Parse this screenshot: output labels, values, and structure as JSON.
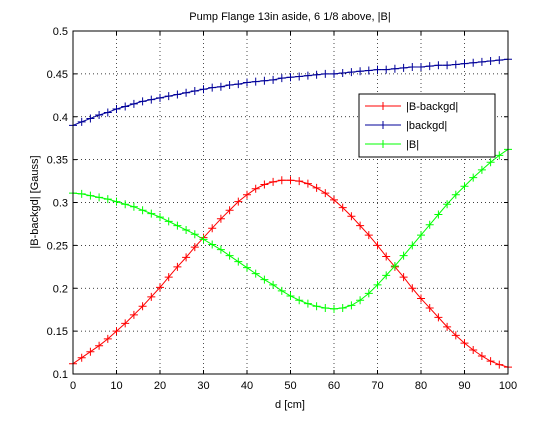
{
  "chart_data": {
    "type": "line",
    "title": "Pump Flange 13in aside, 6 1/8 above, |B|",
    "xlabel": "d [cm]",
    "ylabel": "|B-backgd| [Gauss]",
    "xlim": [
      0,
      100
    ],
    "ylim": [
      0.1,
      0.5
    ],
    "xticks": [
      0,
      10,
      20,
      30,
      40,
      50,
      60,
      70,
      80,
      90,
      100
    ],
    "yticks": [
      0.1,
      0.15,
      0.2,
      0.25,
      0.3,
      0.35,
      0.4,
      0.45,
      0.5
    ],
    "xtick_labels": [
      "0",
      "10",
      "20",
      "30",
      "40",
      "50",
      "60",
      "70",
      "80",
      "90",
      "100"
    ],
    "ytick_labels": [
      "0.1",
      "0.15",
      "0.2",
      "0.25",
      "0.3",
      "0.35",
      "0.4",
      "0.45",
      "0.5"
    ],
    "grid": true,
    "legend_position": "upper-right",
    "marker": "plus",
    "x": [
      0,
      2,
      4,
      6,
      8,
      10,
      12,
      14,
      16,
      18,
      20,
      22,
      24,
      26,
      28,
      30,
      32,
      34,
      36,
      38,
      40,
      42,
      44,
      46,
      48,
      50,
      52,
      54,
      56,
      58,
      60,
      62,
      64,
      66,
      68,
      70,
      72,
      74,
      76,
      78,
      80,
      82,
      84,
      86,
      88,
      90,
      92,
      94,
      96,
      98,
      100
    ],
    "series": [
      {
        "name": "|B-backgd|",
        "color": "#ff0000",
        "values": [
          0.112,
          0.119,
          0.126,
          0.133,
          0.141,
          0.15,
          0.159,
          0.169,
          0.179,
          0.19,
          0.201,
          0.213,
          0.225,
          0.236,
          0.248,
          0.259,
          0.27,
          0.281,
          0.291,
          0.301,
          0.309,
          0.316,
          0.321,
          0.324,
          0.326,
          0.326,
          0.325,
          0.322,
          0.317,
          0.311,
          0.303,
          0.294,
          0.284,
          0.273,
          0.262,
          0.25,
          0.237,
          0.225,
          0.213,
          0.2,
          0.188,
          0.177,
          0.166,
          0.155,
          0.145,
          0.136,
          0.128,
          0.121,
          0.115,
          0.111,
          0.108
        ]
      },
      {
        "name": "|backgd|",
        "color": "#000099",
        "values": [
          0.39,
          0.394,
          0.398,
          0.402,
          0.405,
          0.409,
          0.412,
          0.415,
          0.418,
          0.42,
          0.422,
          0.424,
          0.426,
          0.428,
          0.43,
          0.432,
          0.434,
          0.435,
          0.437,
          0.438,
          0.44,
          0.441,
          0.442,
          0.443,
          0.445,
          0.446,
          0.447,
          0.448,
          0.449,
          0.45,
          0.45,
          0.451,
          0.452,
          0.453,
          0.454,
          0.455,
          0.455,
          0.456,
          0.457,
          0.458,
          0.458,
          0.459,
          0.46,
          0.46,
          0.461,
          0.462,
          0.463,
          0.464,
          0.465,
          0.466,
          0.467
        ]
      },
      {
        "name": "|B|",
        "color": "#00ff00",
        "values": [
          0.311,
          0.31,
          0.308,
          0.306,
          0.304,
          0.301,
          0.298,
          0.295,
          0.291,
          0.287,
          0.283,
          0.278,
          0.273,
          0.268,
          0.263,
          0.257,
          0.251,
          0.245,
          0.238,
          0.231,
          0.224,
          0.217,
          0.21,
          0.204,
          0.197,
          0.191,
          0.186,
          0.182,
          0.179,
          0.177,
          0.176,
          0.177,
          0.18,
          0.186,
          0.194,
          0.204,
          0.215,
          0.226,
          0.238,
          0.25,
          0.262,
          0.274,
          0.286,
          0.298,
          0.309,
          0.319,
          0.329,
          0.338,
          0.347,
          0.355,
          0.362
        ]
      }
    ]
  }
}
